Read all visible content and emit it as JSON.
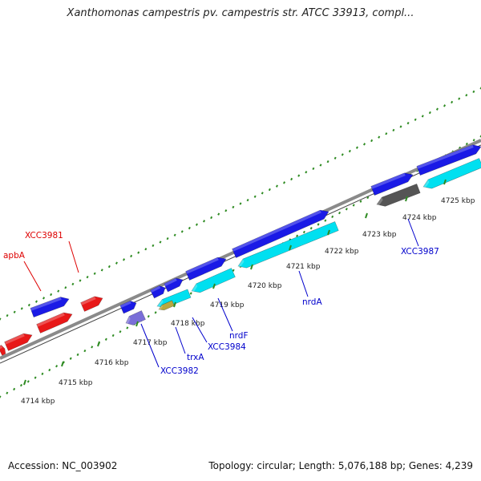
{
  "title": "Xanthomonas campestris pv. campestris str. ATCC 33913, compl...",
  "footer": {
    "accession": "Accession: NC_003902",
    "summary": "Topology: circular; Length: 5,076,188 bp; Genes: 4,239"
  },
  "colors": {
    "forward_gene": "#1a1ae6",
    "reverse_gene": "#00e0f0",
    "highlight_gene": "#e81818",
    "rna_gene": "#7a6fd8",
    "pseudo_gene": "#555555",
    "backbone": "#8a8a8a",
    "tick": "#2e8b22",
    "forward_label": "#0000cc",
    "highlight_label": "#dd0000"
  },
  "ticks": [
    {
      "label": "4714 kbp"
    },
    {
      "label": "4715 kbp"
    },
    {
      "label": "4716 kbp"
    },
    {
      "label": "4717 kbp"
    },
    {
      "label": "4718 kbp"
    },
    {
      "label": "4719 kbp"
    },
    {
      "label": "4720 kbp"
    },
    {
      "label": "4721 kbp"
    },
    {
      "label": "4722 kbp"
    },
    {
      "label": "4723 kbp"
    },
    {
      "label": "4724 kbp"
    },
    {
      "label": "4725 kbp"
    }
  ],
  "gene_labels": [
    {
      "text": "XCC3981",
      "color_key": "highlight_label"
    },
    {
      "text": "apbA",
      "color_key": "highlight_label"
    },
    {
      "text": "XCC3982",
      "color_key": "forward_label"
    },
    {
      "text": "trxA",
      "color_key": "forward_label"
    },
    {
      "text": "XCC3984",
      "color_key": "forward_label"
    },
    {
      "text": "nrdF",
      "color_key": "forward_label"
    },
    {
      "text": "nrdA",
      "color_key": "forward_label"
    },
    {
      "text": "XCC3987",
      "color_key": "forward_label"
    }
  ]
}
